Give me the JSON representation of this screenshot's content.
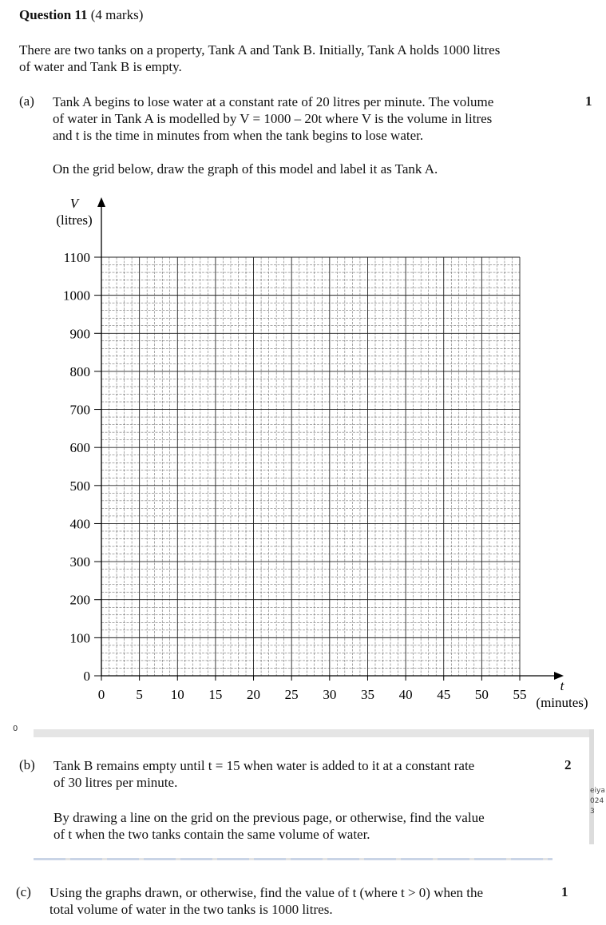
{
  "question": {
    "title": "Question 11",
    "marks_text": "(4 marks)",
    "intro_line1": "There are two tanks on a property, Tank A and Tank B. Initially, Tank A holds 1000 litres",
    "intro_line2": "of water and Tank B is empty."
  },
  "part_a": {
    "label": "(a)",
    "marks": "1",
    "line1": "Tank A begins to lose water at a constant rate of 20 litres per minute. The volume",
    "line2": "of water in Tank A is modelled by V = 1000 – 20t where V is the volume in litres",
    "line3": "and t is the time in minutes from when the tank begins to lose water.",
    "instruction": "On the grid below, draw the graph of this model and label it as Tank A."
  },
  "grid": {
    "y_axis_var": "V",
    "y_axis_unit": "(litres)",
    "x_axis_var": "t",
    "x_axis_unit": "(minutes)",
    "y_ticks": [
      "1100",
      "1000",
      "900",
      "800",
      "700",
      "600",
      "500",
      "400",
      "300",
      "200",
      "100",
      "0"
    ],
    "x_ticks": [
      "0",
      "5",
      "10",
      "15",
      "20",
      "25",
      "30",
      "35",
      "40",
      "45",
      "50",
      "55"
    ],
    "x_range": [
      0,
      55
    ],
    "y_range": [
      0,
      1100
    ],
    "grid_lines": true
  },
  "part_b": {
    "label": "(b)",
    "marks": "2",
    "line1": "Tank B remains empty until t = 15 when water is added to it at a constant rate",
    "line2": "of 30 litres per minute.",
    "line3": "By drawing a line on the grid on the previous page, or otherwise, find the value",
    "line4": "of t when the two tanks contain the same volume of water."
  },
  "part_c": {
    "label": "(c)",
    "marks": "1",
    "line1": "Using the graphs drawn, or otherwise, find the value of t (where t > 0) when the",
    "line2": "total volume of water in the two tanks is 1000 litres."
  },
  "artifacts": {
    "corner_zero": "0",
    "side_note_1": "eiya",
    "side_note_2": "024",
    "side_note_3": "3"
  }
}
